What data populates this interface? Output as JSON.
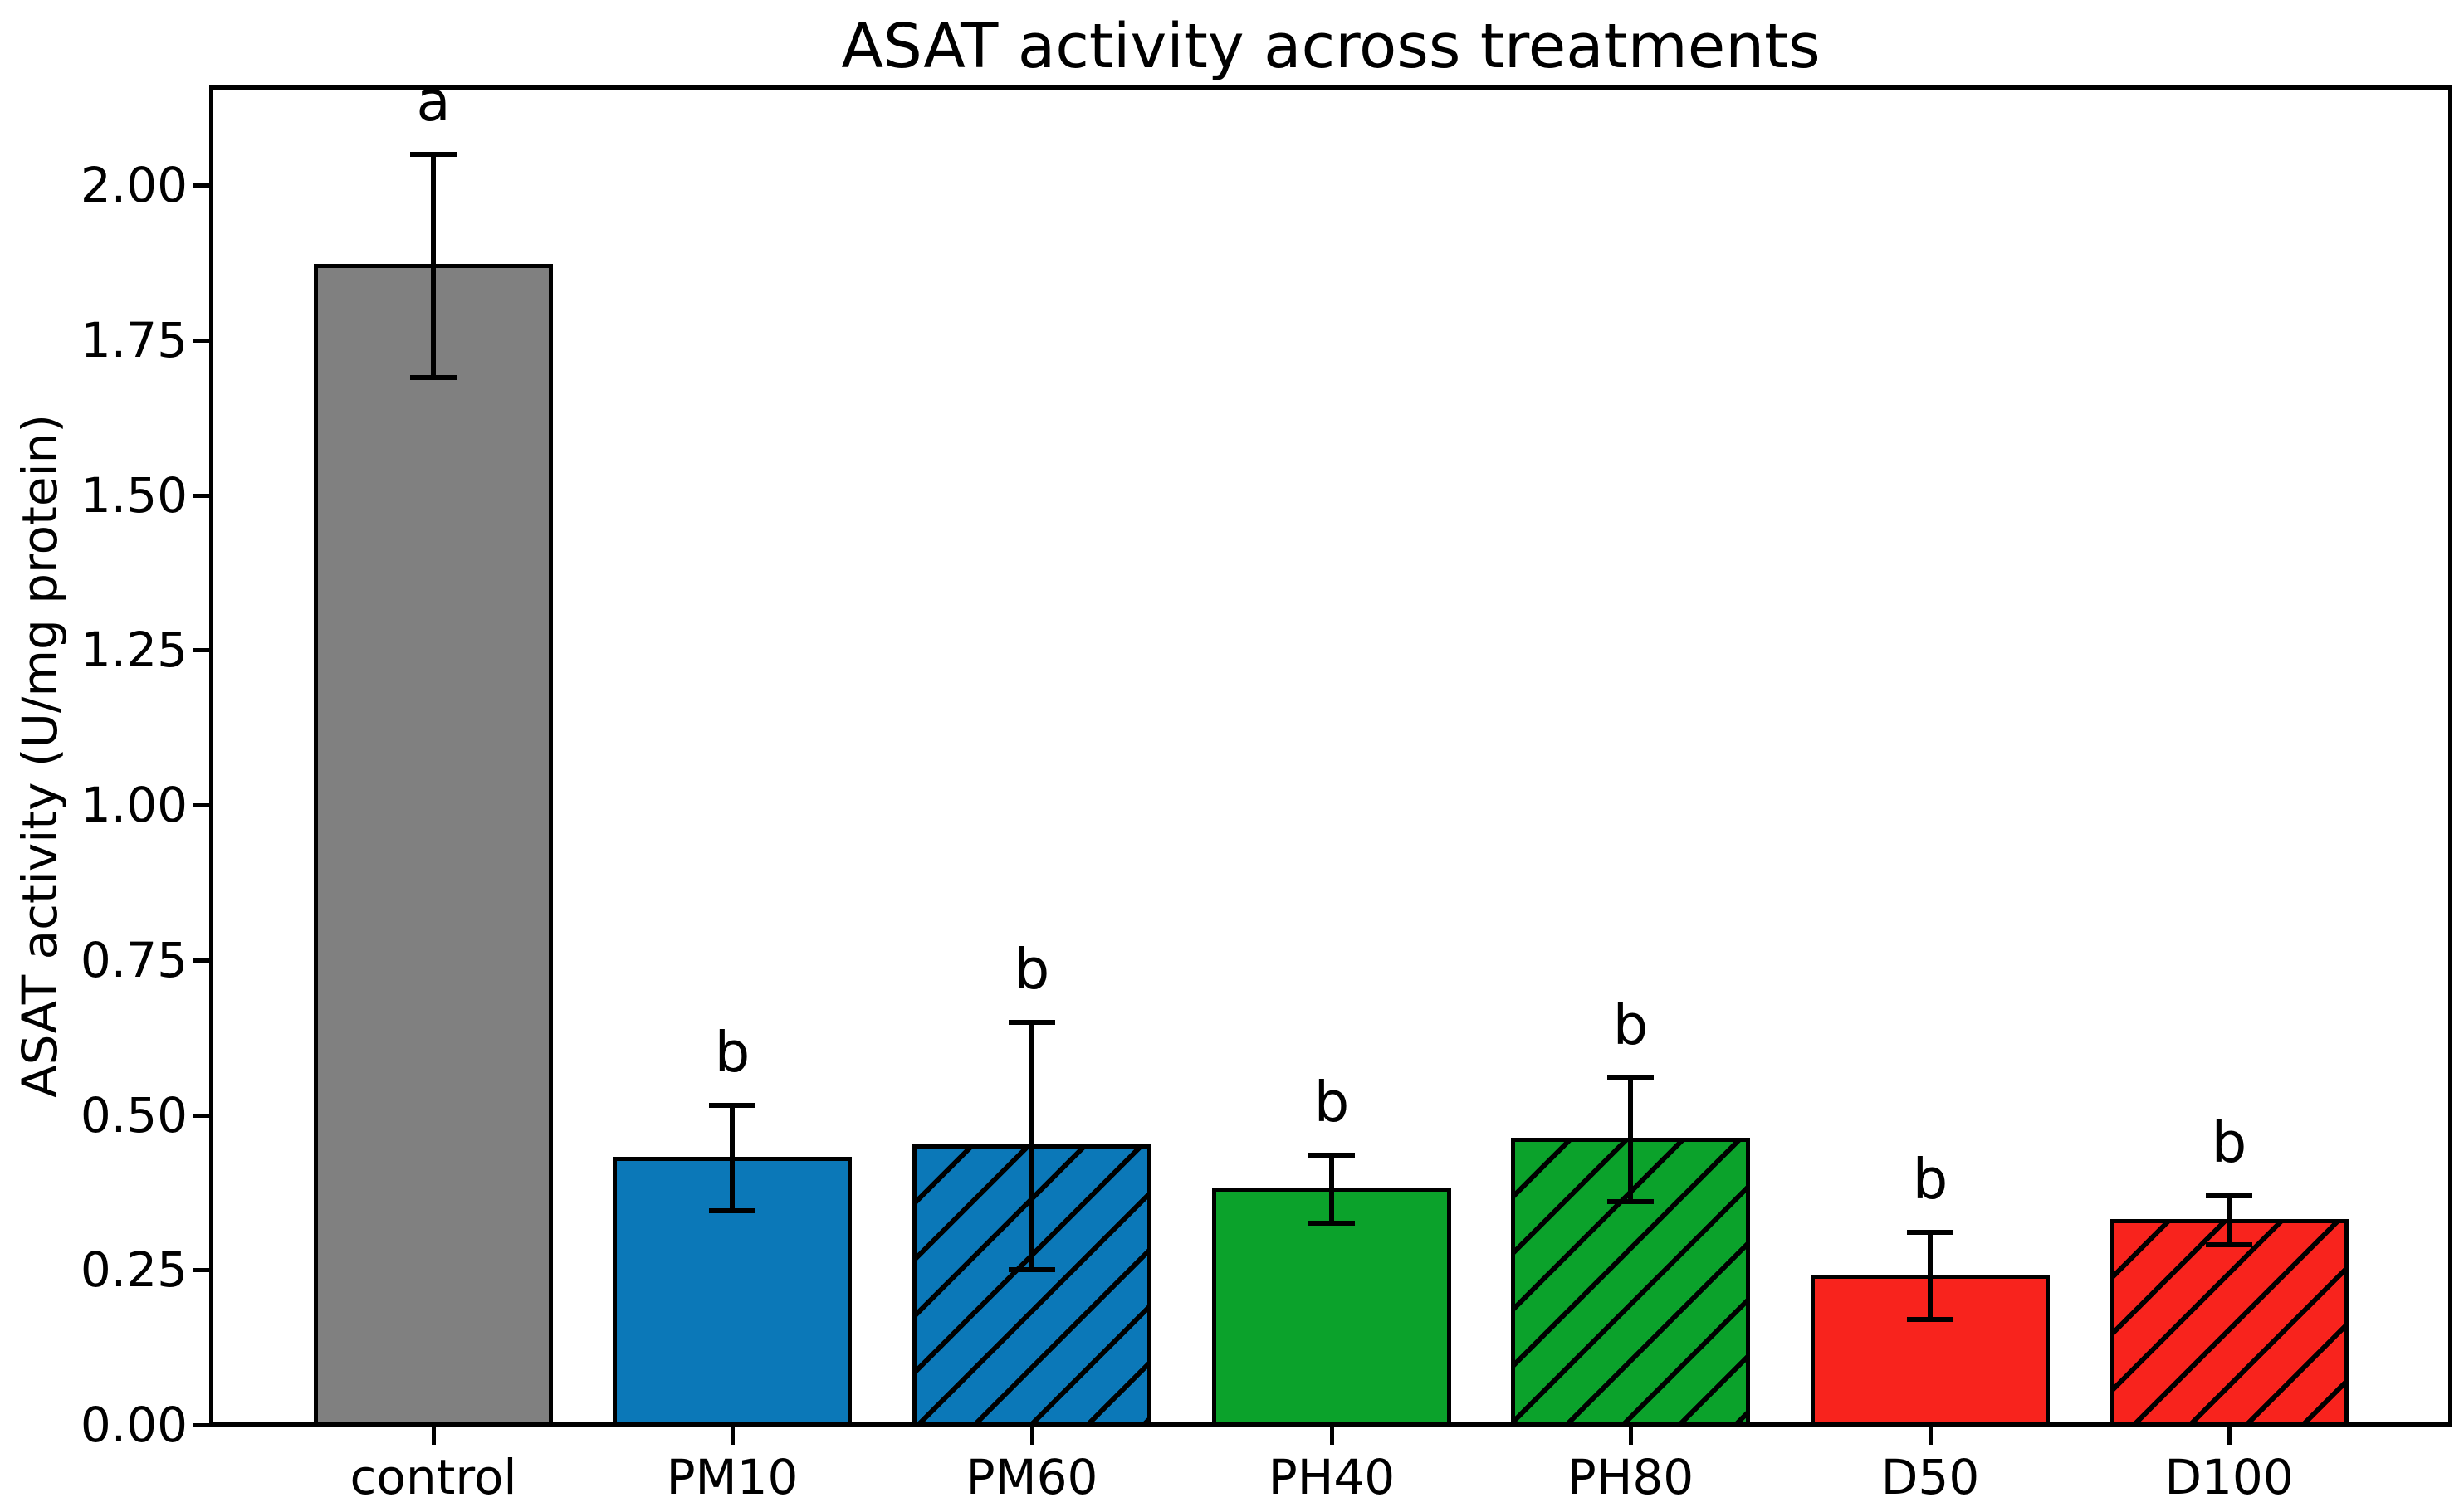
{
  "chart_data": {
    "type": "bar",
    "title": "ASAT activity across treatments",
    "xlabel": "",
    "ylabel": "ASAT activity (U/mg protein)",
    "categories": [
      "control",
      "PM10",
      "PM60",
      "PH40",
      "PH80",
      "D50",
      "D100"
    ],
    "values": [
      1.87,
      0.43,
      0.45,
      0.38,
      0.46,
      0.24,
      0.33
    ],
    "errors": [
      0.18,
      0.085,
      0.2,
      0.055,
      0.1,
      0.07,
      0.04
    ],
    "sig_letters": [
      "a",
      "b",
      "b",
      "b",
      "b",
      "b",
      "b"
    ],
    "bar_colors": [
      "#808080",
      "#0b78b8",
      "#0b78b8",
      "#0ba22b",
      "#0ba22b",
      "#f8231d",
      "#f8231d"
    ],
    "hatched": [
      false,
      false,
      true,
      false,
      true,
      false,
      true
    ],
    "hatch_style": "/",
    "edge_color": "#000000",
    "error_color": "#000000",
    "ylim": [
      0,
      2.157
    ],
    "ytick_values": [
      0.0,
      0.25,
      0.5,
      0.75,
      1.0,
      1.25,
      1.5,
      1.75,
      2.0
    ],
    "ytick_labels": [
      "0.00",
      "0.25",
      "0.50",
      "0.75",
      "1.00",
      "1.25",
      "1.50",
      "1.75",
      "2.00"
    ],
    "bar_width_fraction": 0.8,
    "grid": false,
    "legend": null
  }
}
